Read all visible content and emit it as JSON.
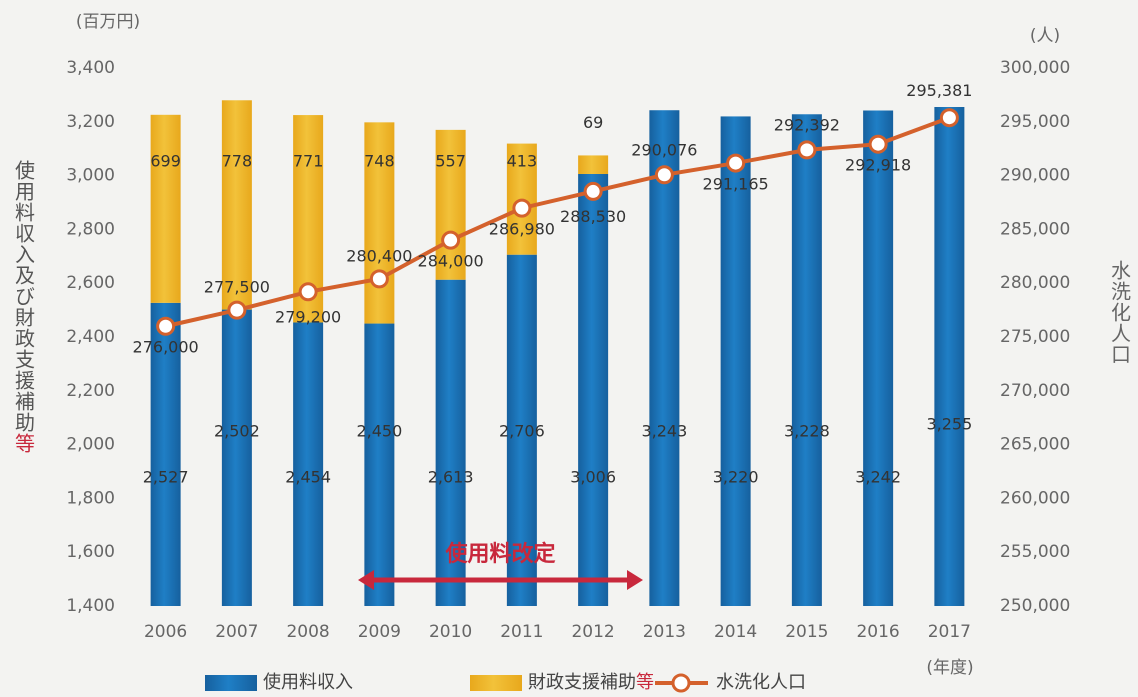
{
  "chart_data": {
    "type": "bar_line",
    "y_unit": "(百万円)",
    "y2_unit": "(人)",
    "ylabel": [
      "使用料収入及び財政支援補助",
      "等"
    ],
    "y2label": "水洗化人口",
    "xlabel": "(年度)",
    "categories": [
      "2006",
      "2007",
      "2008",
      "2009",
      "2010",
      "2011",
      "2012",
      "2013",
      "2014",
      "2015",
      "2016",
      "2017"
    ],
    "series": [
      {
        "name": "使用料収入",
        "color": "#1f7fc6",
        "type": "bar",
        "values": [
          2527,
          2502,
          2454,
          2450,
          2613,
          2706,
          3006,
          3243,
          3220,
          3228,
          3242,
          3255
        ],
        "value_labels": [
          "2,527",
          "2,502",
          "2,454",
          "2,450",
          "2,613",
          "2,706",
          "3,006",
          "3,243",
          "3,220",
          "3,228",
          "3,242",
          "3,255"
        ]
      },
      {
        "name": "財政支援補助",
        "legend_note": "等",
        "color": "#f2c23a",
        "type": "bar",
        "values": [
          699,
          778,
          771,
          748,
          557,
          413,
          69,
          null,
          null,
          null,
          null,
          null
        ]
      },
      {
        "name": "水洗化人口",
        "color": "#d4612c",
        "type": "line",
        "axis": "y2",
        "values": [
          276000,
          277500,
          279200,
          280400,
          284000,
          286980,
          288530,
          290076,
          291165,
          292392,
          292918,
          295381
        ],
        "value_labels": [
          "276,000",
          "277,500",
          "279,200",
          "280,400",
          "284,000",
          "286,980",
          "288,530",
          "290,076",
          "291,165",
          "292,392",
          "292,918",
          "295,381"
        ]
      }
    ],
    "ylim": [
      1400,
      3400
    ],
    "yticks": [
      {
        "value": 1400,
        "label": "1,400"
      },
      {
        "value": 1600,
        "label": "1,600"
      },
      {
        "value": 1800,
        "label": "1,800"
      },
      {
        "value": 2000,
        "label": "2,000"
      },
      {
        "value": 2200,
        "label": "2,200"
      },
      {
        "value": 2400,
        "label": "2,400"
      },
      {
        "value": 2600,
        "label": "2,600"
      },
      {
        "value": 2800,
        "label": "2,800"
      },
      {
        "value": 3000,
        "label": "3,000"
      },
      {
        "value": 3200,
        "label": "3,200"
      },
      {
        "value": 3400,
        "label": "3,400"
      }
    ],
    "y2lim": [
      250000,
      300000
    ],
    "y2ticks": [
      {
        "value": 250000,
        "label": "250,000"
      },
      {
        "value": 255000,
        "label": "255,000"
      },
      {
        "value": 260000,
        "label": "260,000"
      },
      {
        "value": 265000,
        "label": "265,000"
      },
      {
        "value": 270000,
        "label": "270,000"
      },
      {
        "value": 275000,
        "label": "275,000"
      },
      {
        "value": 280000,
        "label": "280,000"
      },
      {
        "value": 285000,
        "label": "285,000"
      },
      {
        "value": 290000,
        "label": "290,000"
      },
      {
        "value": 295000,
        "label": "295,000"
      },
      {
        "value": 300000,
        "label": "300,000"
      }
    ],
    "annotation": {
      "text": "使用料改定",
      "from": "2009",
      "to": "2012",
      "color": "#c8283c"
    }
  }
}
